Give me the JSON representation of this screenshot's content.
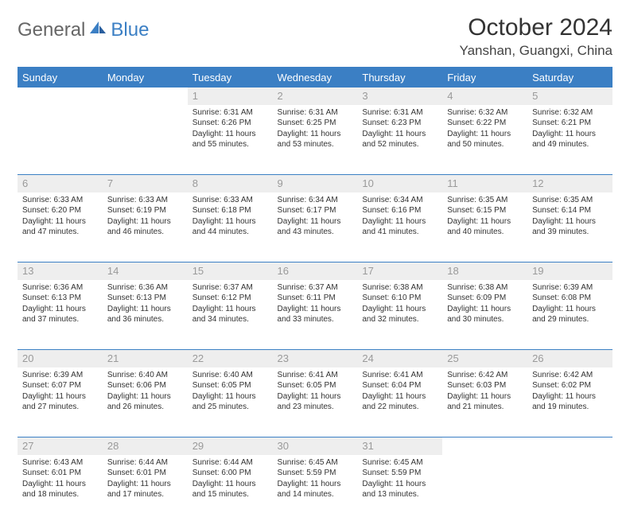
{
  "brand": {
    "general": "General",
    "blue": "Blue"
  },
  "title": "October 2024",
  "location": "Yanshan, Guangxi, China",
  "colors": {
    "accent": "#3b7fc4",
    "header_text": "#ffffff",
    "daynum_bg": "#eeeeee",
    "daynum_text": "#9a9a9a",
    "body_text": "#333333",
    "background": "#ffffff"
  },
  "weekdays": [
    "Sunday",
    "Monday",
    "Tuesday",
    "Wednesday",
    "Thursday",
    "Friday",
    "Saturday"
  ],
  "weeks": [
    [
      null,
      null,
      {
        "n": "1",
        "sr": "Sunrise: 6:31 AM",
        "ss": "Sunset: 6:26 PM",
        "d1": "Daylight: 11 hours",
        "d2": "and 55 minutes."
      },
      {
        "n": "2",
        "sr": "Sunrise: 6:31 AM",
        "ss": "Sunset: 6:25 PM",
        "d1": "Daylight: 11 hours",
        "d2": "and 53 minutes."
      },
      {
        "n": "3",
        "sr": "Sunrise: 6:31 AM",
        "ss": "Sunset: 6:23 PM",
        "d1": "Daylight: 11 hours",
        "d2": "and 52 minutes."
      },
      {
        "n": "4",
        "sr": "Sunrise: 6:32 AM",
        "ss": "Sunset: 6:22 PM",
        "d1": "Daylight: 11 hours",
        "d2": "and 50 minutes."
      },
      {
        "n": "5",
        "sr": "Sunrise: 6:32 AM",
        "ss": "Sunset: 6:21 PM",
        "d1": "Daylight: 11 hours",
        "d2": "and 49 minutes."
      }
    ],
    [
      {
        "n": "6",
        "sr": "Sunrise: 6:33 AM",
        "ss": "Sunset: 6:20 PM",
        "d1": "Daylight: 11 hours",
        "d2": "and 47 minutes."
      },
      {
        "n": "7",
        "sr": "Sunrise: 6:33 AM",
        "ss": "Sunset: 6:19 PM",
        "d1": "Daylight: 11 hours",
        "d2": "and 46 minutes."
      },
      {
        "n": "8",
        "sr": "Sunrise: 6:33 AM",
        "ss": "Sunset: 6:18 PM",
        "d1": "Daylight: 11 hours",
        "d2": "and 44 minutes."
      },
      {
        "n": "9",
        "sr": "Sunrise: 6:34 AM",
        "ss": "Sunset: 6:17 PM",
        "d1": "Daylight: 11 hours",
        "d2": "and 43 minutes."
      },
      {
        "n": "10",
        "sr": "Sunrise: 6:34 AM",
        "ss": "Sunset: 6:16 PM",
        "d1": "Daylight: 11 hours",
        "d2": "and 41 minutes."
      },
      {
        "n": "11",
        "sr": "Sunrise: 6:35 AM",
        "ss": "Sunset: 6:15 PM",
        "d1": "Daylight: 11 hours",
        "d2": "and 40 minutes."
      },
      {
        "n": "12",
        "sr": "Sunrise: 6:35 AM",
        "ss": "Sunset: 6:14 PM",
        "d1": "Daylight: 11 hours",
        "d2": "and 39 minutes."
      }
    ],
    [
      {
        "n": "13",
        "sr": "Sunrise: 6:36 AM",
        "ss": "Sunset: 6:13 PM",
        "d1": "Daylight: 11 hours",
        "d2": "and 37 minutes."
      },
      {
        "n": "14",
        "sr": "Sunrise: 6:36 AM",
        "ss": "Sunset: 6:13 PM",
        "d1": "Daylight: 11 hours",
        "d2": "and 36 minutes."
      },
      {
        "n": "15",
        "sr": "Sunrise: 6:37 AM",
        "ss": "Sunset: 6:12 PM",
        "d1": "Daylight: 11 hours",
        "d2": "and 34 minutes."
      },
      {
        "n": "16",
        "sr": "Sunrise: 6:37 AM",
        "ss": "Sunset: 6:11 PM",
        "d1": "Daylight: 11 hours",
        "d2": "and 33 minutes."
      },
      {
        "n": "17",
        "sr": "Sunrise: 6:38 AM",
        "ss": "Sunset: 6:10 PM",
        "d1": "Daylight: 11 hours",
        "d2": "and 32 minutes."
      },
      {
        "n": "18",
        "sr": "Sunrise: 6:38 AM",
        "ss": "Sunset: 6:09 PM",
        "d1": "Daylight: 11 hours",
        "d2": "and 30 minutes."
      },
      {
        "n": "19",
        "sr": "Sunrise: 6:39 AM",
        "ss": "Sunset: 6:08 PM",
        "d1": "Daylight: 11 hours",
        "d2": "and 29 minutes."
      }
    ],
    [
      {
        "n": "20",
        "sr": "Sunrise: 6:39 AM",
        "ss": "Sunset: 6:07 PM",
        "d1": "Daylight: 11 hours",
        "d2": "and 27 minutes."
      },
      {
        "n": "21",
        "sr": "Sunrise: 6:40 AM",
        "ss": "Sunset: 6:06 PM",
        "d1": "Daylight: 11 hours",
        "d2": "and 26 minutes."
      },
      {
        "n": "22",
        "sr": "Sunrise: 6:40 AM",
        "ss": "Sunset: 6:05 PM",
        "d1": "Daylight: 11 hours",
        "d2": "and 25 minutes."
      },
      {
        "n": "23",
        "sr": "Sunrise: 6:41 AM",
        "ss": "Sunset: 6:05 PM",
        "d1": "Daylight: 11 hours",
        "d2": "and 23 minutes."
      },
      {
        "n": "24",
        "sr": "Sunrise: 6:41 AM",
        "ss": "Sunset: 6:04 PM",
        "d1": "Daylight: 11 hours",
        "d2": "and 22 minutes."
      },
      {
        "n": "25",
        "sr": "Sunrise: 6:42 AM",
        "ss": "Sunset: 6:03 PM",
        "d1": "Daylight: 11 hours",
        "d2": "and 21 minutes."
      },
      {
        "n": "26",
        "sr": "Sunrise: 6:42 AM",
        "ss": "Sunset: 6:02 PM",
        "d1": "Daylight: 11 hours",
        "d2": "and 19 minutes."
      }
    ],
    [
      {
        "n": "27",
        "sr": "Sunrise: 6:43 AM",
        "ss": "Sunset: 6:01 PM",
        "d1": "Daylight: 11 hours",
        "d2": "and 18 minutes."
      },
      {
        "n": "28",
        "sr": "Sunrise: 6:44 AM",
        "ss": "Sunset: 6:01 PM",
        "d1": "Daylight: 11 hours",
        "d2": "and 17 minutes."
      },
      {
        "n": "29",
        "sr": "Sunrise: 6:44 AM",
        "ss": "Sunset: 6:00 PM",
        "d1": "Daylight: 11 hours",
        "d2": "and 15 minutes."
      },
      {
        "n": "30",
        "sr": "Sunrise: 6:45 AM",
        "ss": "Sunset: 5:59 PM",
        "d1": "Daylight: 11 hours",
        "d2": "and 14 minutes."
      },
      {
        "n": "31",
        "sr": "Sunrise: 6:45 AM",
        "ss": "Sunset: 5:59 PM",
        "d1": "Daylight: 11 hours",
        "d2": "and 13 minutes."
      },
      null,
      null
    ]
  ]
}
